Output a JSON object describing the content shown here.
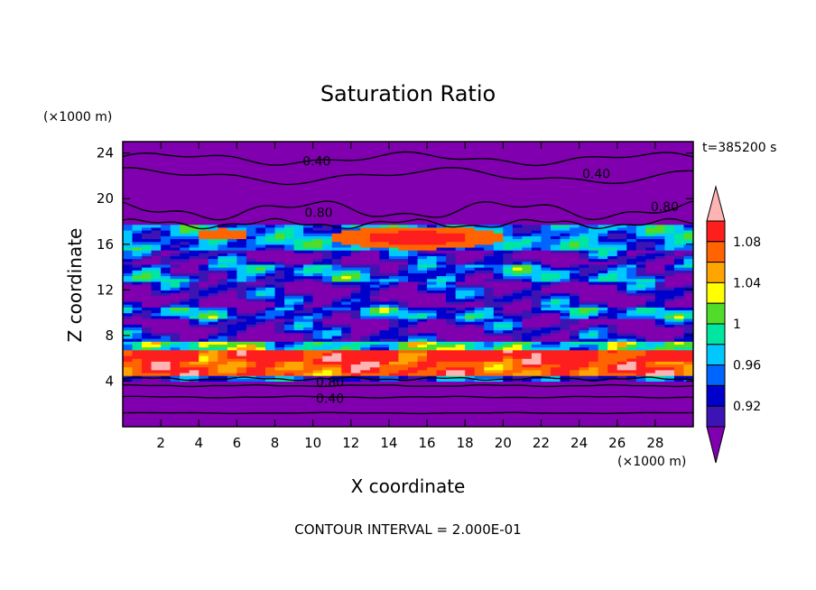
{
  "chart_data": {
    "type": "heatmap",
    "title": "Saturation Ratio",
    "xlabel": "X coordinate",
    "ylabel": "Z coordinate",
    "x_unit": "(×1000 m)",
    "y_unit": "(×1000 m)",
    "xlim": [
      0,
      30
    ],
    "ylim": [
      0,
      25
    ],
    "x_ticks": [
      2,
      4,
      6,
      8,
      10,
      12,
      14,
      16,
      18,
      20,
      22,
      24,
      26,
      28
    ],
    "y_ticks": [
      4,
      8,
      12,
      16,
      20,
      24
    ],
    "time_label": "t=385200 s",
    "footnote": "CONTOUR INTERVAL = 2.000E-01",
    "contour_labels": [
      {
        "text": "0.40",
        "x": 10.2,
        "y": 23.3
      },
      {
        "text": "0.40",
        "x": 24.9,
        "y": 22.2
      },
      {
        "text": "0.80",
        "x": 10.3,
        "y": 18.8
      },
      {
        "text": "0.80",
        "x": 28.5,
        "y": 19.3
      },
      {
        "text": "0.80",
        "x": 10.9,
        "y": 3.9
      },
      {
        "text": "0.40",
        "x": 10.9,
        "y": 2.5
      }
    ],
    "colorbar": {
      "tick_labels": [
        "1.08",
        "1.04",
        "1",
        "0.96",
        "0.92"
      ],
      "tick_values": [
        1.08,
        1.04,
        1.0,
        0.96,
        0.92
      ],
      "levels": [
        0.9,
        0.92,
        0.94,
        0.96,
        0.98,
        1.0,
        1.02,
        1.04,
        1.06,
        1.08,
        1.1
      ],
      "colors": [
        "#8000b0",
        "#3c14b4",
        "#0000cd",
        "#0064ff",
        "#00c8ff",
        "#00e6a0",
        "#50dc28",
        "#ffff00",
        "#ffa500",
        "#ff6400",
        "#ff1e1e",
        "#ffb4b4"
      ]
    },
    "bands": [
      {
        "z": [
          0,
          4.1
        ],
        "value": 0.3
      },
      {
        "z": [
          4.1,
          4.6
        ],
        "value": 0.955
      },
      {
        "z": [
          4.6,
          6.8
        ],
        "value": 1.08
      },
      {
        "z": [
          6.8,
          7.5
        ],
        "value": 0.99
      },
      {
        "z": [
          7.5,
          15.5
        ],
        "value": 0.95
      },
      {
        "z": [
          15.5,
          17.5
        ],
        "value": 0.97
      },
      {
        "z": [
          17.5,
          25
        ],
        "value": 0.5
      }
    ]
  }
}
